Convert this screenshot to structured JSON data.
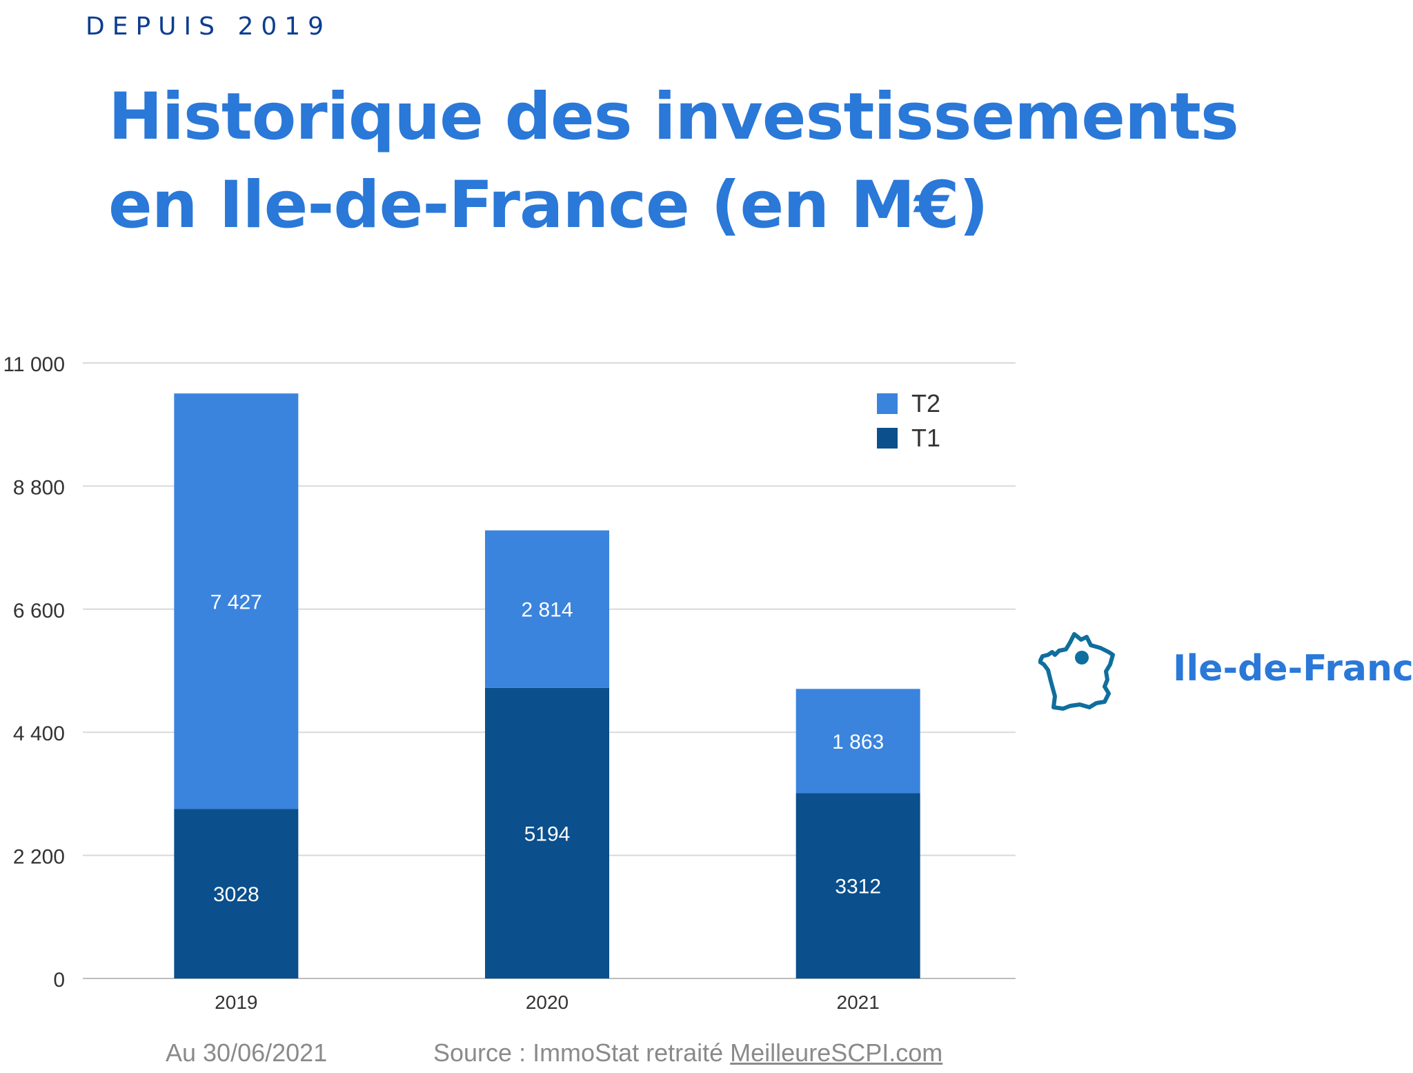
{
  "eyebrow": "DEPUIS 2019",
  "title_lines": [
    "Historique des investissements",
    "en Ile-de-France (en M€)"
  ],
  "region": {
    "label": "Ile-de-France",
    "icon": "france-map-icon",
    "color": "#0f6e9e"
  },
  "footer": {
    "date": "Au 30/06/2021",
    "source_prefix": "Source : ImmoStat retraité ",
    "source_link": "MeilleureSCPI.com"
  },
  "chart_data": {
    "type": "bar",
    "stacked": true,
    "categories": [
      "2019",
      "2020",
      "2021"
    ],
    "series": [
      {
        "name": "T1",
        "values": [
          3028,
          5194,
          3312
        ],
        "labels": [
          "3028",
          "5194",
          "3312"
        ],
        "color": "#0b4f8c"
      },
      {
        "name": "T2",
        "values": [
          7427,
          2814,
          1863
        ],
        "labels": [
          "7 427",
          "2 814",
          "1 863"
        ],
        "color": "#3b84dd"
      }
    ],
    "ylim": [
      0,
      11000
    ],
    "yticks": [
      0,
      2200,
      4400,
      6600,
      8800,
      11000
    ],
    "ytick_labels": [
      "0",
      "2 200",
      "4 400",
      "6 600",
      "8 800",
      "11 000"
    ],
    "grid": true,
    "legend": {
      "position": "top-right",
      "order": [
        "T2",
        "T1"
      ]
    },
    "xlabel": "",
    "ylabel": ""
  }
}
